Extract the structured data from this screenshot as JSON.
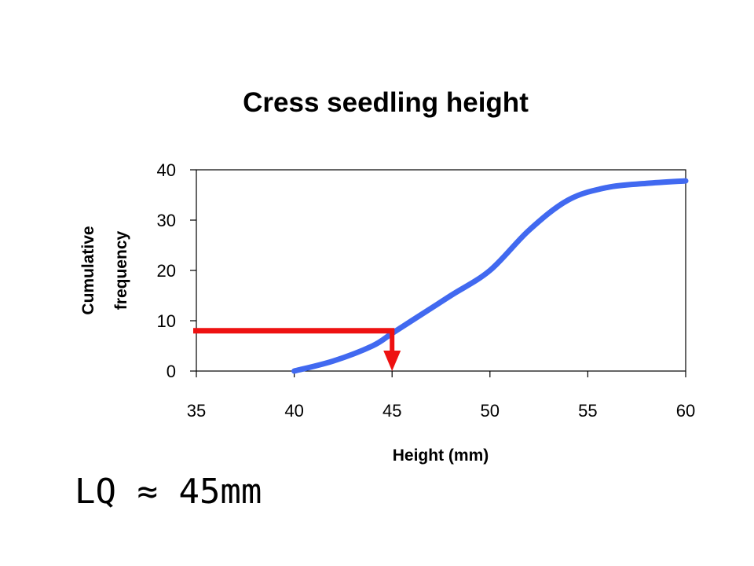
{
  "chart_data": {
    "type": "line",
    "title": "Cress seedling height",
    "xlabel": "Height (mm)",
    "ylabel_lines": [
      "Cumulative",
      "frequency"
    ],
    "xlim": [
      35,
      60
    ],
    "ylim": [
      0,
      40
    ],
    "x_ticks": [
      "35",
      "40",
      "45",
      "50",
      "55",
      "60"
    ],
    "y_ticks": [
      "0",
      "10",
      "20",
      "30",
      "40"
    ],
    "grid": false,
    "legend": "none",
    "series": [
      {
        "color": "#4169f0",
        "x": [
          40,
          42,
          44,
          45,
          46,
          48,
          50,
          52,
          54,
          56,
          58,
          60
        ],
        "y": [
          0,
          2,
          5,
          7.5,
          10,
          15,
          20,
          28,
          34,
          36.5,
          37.3,
          37.8
        ]
      }
    ],
    "annotation": {
      "color": "#ee1111",
      "description_point": {
        "x": 45,
        "y": 8
      },
      "hline_from_x": 35,
      "arrow_to_y": 0
    }
  },
  "note": "LQ ≈ 45mm"
}
